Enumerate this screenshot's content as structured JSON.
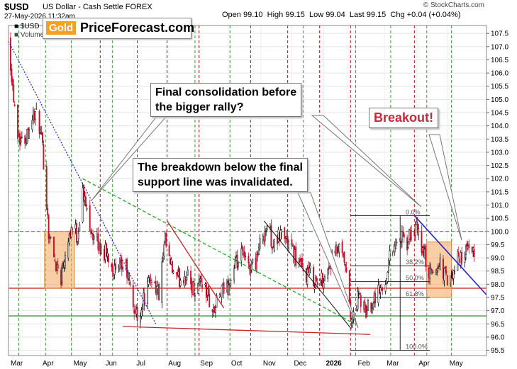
{
  "header": {
    "ticker": "$USD",
    "name": "US Dollar - Cash Settle",
    "exchange": "FOREX",
    "datetime": "27-May-2026 11:32am",
    "open_label": "Open",
    "open": "99.10",
    "high_label": "High",
    "high": "99.15",
    "low_label": "Low",
    "low": "99.04",
    "last_label": "Last",
    "last": "99.15",
    "chg_label": "Chg",
    "chg": "+0.04 (+0.04%)",
    "source": "© StockCharts.com",
    "legend_price": "$USD",
    "legend_volume": "Volume"
  },
  "logo": {
    "gold": "Gold",
    "text": "PriceForecast.com"
  },
  "annotations": {
    "callout1_line1": "Final consolidation before",
    "callout1_line2": "the bigger rally?",
    "callout2_line1": "The breakdown below the final",
    "callout2_line2": "support line was invalidated.",
    "callout3": "Breakout!"
  },
  "colors": {
    "up_candle": "#000000",
    "down_candle": "#c8102e",
    "green_grid": "#3a9a3a",
    "red_grid": "#b01414",
    "fib_box": "#f5a55a",
    "trend_blue": "#2222cc",
    "trend_green": "#22aa22",
    "support_red": "#cc2222"
  },
  "chart_data": {
    "type": "candlestick",
    "ylim": [
      95.3,
      107.8
    ],
    "y_ticks": [
      95.5,
      96.0,
      96.5,
      97.0,
      97.5,
      98.0,
      98.5,
      99.0,
      99.5,
      100.0,
      100.5,
      101.0,
      101.5,
      102.0,
      102.5,
      103.0,
      103.5,
      104.0,
      104.5,
      105.0,
      105.5,
      106.0,
      106.5,
      107.0,
      107.5
    ],
    "x_range": [
      "2025-03-01",
      "2026-06-08"
    ],
    "x_labels": [
      {
        "label": "Mar",
        "date": "2025-03-01"
      },
      {
        "label": "Apr",
        "date": "2025-04-01"
      },
      {
        "label": "May",
        "date": "2025-05-01"
      },
      {
        "label": "Jun",
        "date": "2025-06-01"
      },
      {
        "label": "Jul",
        "date": "2025-07-01"
      },
      {
        "label": "Aug",
        "date": "2025-08-01"
      },
      {
        "label": "Sep",
        "date": "2025-09-01"
      },
      {
        "label": "Oct",
        "date": "2025-10-01"
      },
      {
        "label": "Nov",
        "date": "2025-11-01"
      },
      {
        "label": "Dec",
        "date": "2025-12-01"
      },
      {
        "label": "2026",
        "date": "2026-01-01"
      },
      {
        "label": "Feb",
        "date": "2026-02-01"
      },
      {
        "label": "Mar",
        "date": "2026-03-01"
      },
      {
        "label": "Apr",
        "date": "2026-04-01"
      },
      {
        "label": "May",
        "date": "2026-05-01"
      }
    ],
    "green_vlines": [
      "2025-03-11",
      "2025-04-06",
      "2025-05-01",
      "2025-06-10",
      "2025-08-29",
      "2025-10-02",
      "2025-12-12",
      "2026-02-01",
      "2026-03-07",
      "2026-04-11",
      "2026-05-05"
    ],
    "red_vlines": [
      "2025-05-29",
      "2025-07-04",
      "2025-08-02",
      "2025-09-02",
      "2025-10-22",
      "2025-11-27",
      "2025-12-28",
      "2026-01-27",
      "2026-03-30"
    ],
    "h_lines": [
      {
        "y": 100.0,
        "style": "green-dashed"
      },
      {
        "y": 97.85,
        "style": "red"
      },
      {
        "y": 96.8,
        "style": "green"
      }
    ],
    "price_path": [
      [
        "2025-03-01",
        107.4
      ],
      [
        "2025-03-05",
        105.5
      ],
      [
        "2025-03-10",
        103.8
      ],
      [
        "2025-03-15",
        103.3
      ],
      [
        "2025-03-20",
        103.9
      ],
      [
        "2025-03-26",
        104.5
      ],
      [
        "2025-03-31",
        104.0
      ],
      [
        "2025-04-04",
        102.7
      ],
      [
        "2025-04-09",
        100.0
      ],
      [
        "2025-04-14",
        99.0
      ],
      [
        "2025-04-21",
        98.3
      ],
      [
        "2025-04-26",
        99.6
      ],
      [
        "2025-05-02",
        100.2
      ],
      [
        "2025-05-07",
        99.8
      ],
      [
        "2025-05-12",
        101.5
      ],
      [
        "2025-05-16",
        100.8
      ],
      [
        "2025-05-23",
        99.7
      ],
      [
        "2025-05-31",
        99.3
      ],
      [
        "2025-06-07",
        99.0
      ],
      [
        "2025-06-14",
        98.3
      ],
      [
        "2025-06-22",
        98.8
      ],
      [
        "2025-06-30",
        97.2
      ],
      [
        "2025-07-04",
        96.7
      ],
      [
        "2025-07-10",
        97.4
      ],
      [
        "2025-07-18",
        98.3
      ],
      [
        "2025-07-25",
        97.6
      ],
      [
        "2025-07-31",
        99.6
      ],
      [
        "2025-08-05",
        98.7
      ],
      [
        "2025-08-12",
        98.1
      ],
      [
        "2025-08-20",
        98.4
      ],
      [
        "2025-08-28",
        97.8
      ],
      [
        "2025-09-04",
        98.2
      ],
      [
        "2025-09-10",
        97.6
      ],
      [
        "2025-09-16",
        96.9
      ],
      [
        "2025-09-22",
        97.6
      ],
      [
        "2025-09-30",
        97.9
      ],
      [
        "2025-10-07",
        98.6
      ],
      [
        "2025-10-14",
        99.1
      ],
      [
        "2025-10-20",
        98.6
      ],
      [
        "2025-10-27",
        98.9
      ],
      [
        "2025-11-03",
        99.9
      ],
      [
        "2025-11-07",
        100.2
      ],
      [
        "2025-11-14",
        99.4
      ],
      [
        "2025-11-21",
        100.0
      ],
      [
        "2025-11-28",
        99.5
      ],
      [
        "2025-12-05",
        99.0
      ],
      [
        "2025-12-12",
        98.4
      ],
      [
        "2025-12-19",
        98.4
      ],
      [
        "2025-12-26",
        98.0
      ],
      [
        "2026-01-02",
        98.3
      ],
      [
        "2026-01-09",
        98.9
      ],
      [
        "2026-01-15",
        99.3
      ],
      [
        "2026-01-21",
        98.8
      ],
      [
        "2026-01-26",
        97.3
      ],
      [
        "2026-01-28",
        96.4
      ],
      [
        "2026-01-30",
        96.9
      ],
      [
        "2026-02-04",
        97.6
      ],
      [
        "2026-02-10",
        96.9
      ],
      [
        "2026-02-16",
        97.3
      ],
      [
        "2026-02-22",
        97.8
      ],
      [
        "2026-02-28",
        97.7
      ],
      [
        "2026-03-05",
        98.9
      ],
      [
        "2026-03-10",
        99.5
      ],
      [
        "2026-03-16",
        99.8
      ],
      [
        "2026-03-22",
        99.4
      ],
      [
        "2026-03-28",
        100.1
      ],
      [
        "2026-04-02",
        100.0
      ],
      [
        "2026-04-06",
        99.4
      ],
      [
        "2026-04-10",
        98.9
      ],
      [
        "2026-04-14",
        98.3
      ],
      [
        "2026-04-19",
        98.5
      ],
      [
        "2026-04-24",
        98.8
      ],
      [
        "2026-04-30",
        98.2
      ],
      [
        "2026-05-05",
        98.1
      ],
      [
        "2026-05-10",
        98.9
      ],
      [
        "2026-05-15",
        99.1
      ],
      [
        "2026-05-20",
        99.2
      ],
      [
        "2026-05-27",
        99.15
      ]
    ],
    "fib_levels": [
      {
        "label": "0.0%",
        "y": 100.6
      },
      {
        "label": "38.2%",
        "y": 98.7
      },
      {
        "label": "50.0%",
        "y": 98.1
      },
      {
        "label": "61.8%",
        "y": 97.5
      },
      {
        "label": "100.0%",
        "y": 95.5
      }
    ],
    "fib_start": "2026-01-27",
    "fib_end": "2026-04-14",
    "highlight_boxes": [
      {
        "x0": "2025-04-05",
        "x1": "2025-05-04",
        "y0": 97.85,
        "y1": 100.0
      },
      {
        "x0": "2026-04-11",
        "x1": "2026-05-05",
        "y0": 97.5,
        "y1": 99.6
      }
    ],
    "trend_lines": [
      {
        "name": "blue-down",
        "from": [
          "2025-03-01",
          107.2
        ],
        "to": [
          "2025-07-22",
          96.5
        ],
        "style": "blue-dotted"
      },
      {
        "name": "green-down",
        "from": [
          "2025-05-12",
          102.0
        ],
        "to": [
          "2026-01-31",
          96.5
        ],
        "style": "green-dashed"
      },
      {
        "name": "red-support",
        "from": [
          "2025-06-20",
          96.4
        ],
        "to": [
          "2026-02-15",
          96.1
        ],
        "style": "red"
      },
      {
        "name": "red-down",
        "from": [
          "2025-08-02",
          100.4
        ],
        "to": [
          "2025-09-26",
          97.1
        ],
        "style": "red"
      },
      {
        "name": "black-down",
        "from": [
          "2025-11-04",
          100.4
        ],
        "to": [
          "2026-01-28",
          96.3
        ],
        "style": "black"
      },
      {
        "name": "blue-resistance",
        "from": [
          "2026-03-30",
          100.6
        ],
        "to": [
          "2026-06-08",
          97.6
        ],
        "style": "blue"
      }
    ]
  }
}
